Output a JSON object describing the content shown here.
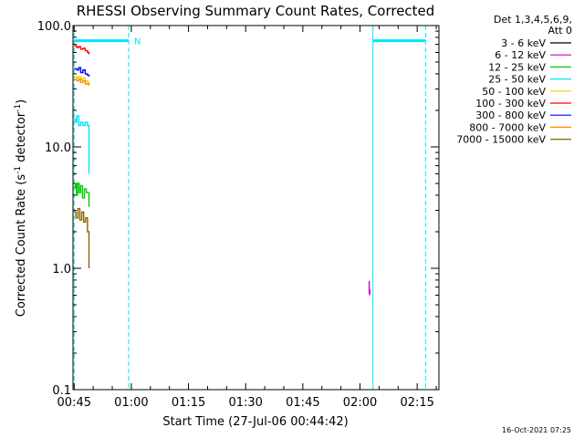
{
  "colors": {
    "background": "#ffffff",
    "axes": "#000000",
    "attenuator_marker": "#00e5ff"
  },
  "chart_data": {
    "type": "line",
    "title": "RHESSI Observing Summary Count Rates, Corrected",
    "xlabel": "Start Time (27-Jul-06 00:44:42)",
    "ylabel_main": "Corrected Count Rate (s",
    "ylabel_sup1": "-1",
    "ylabel_mid": " detector",
    "ylabel_sup2": "-1",
    "ylabel_end": ")",
    "yscale": "log",
    "ylim": [
      0.1,
      100.0
    ],
    "xlim_minutes": [
      0,
      96
    ],
    "x_ticks": [
      {
        "label": "00:45",
        "min": 0.3
      },
      {
        "label": "01:00",
        "min": 15.3
      },
      {
        "label": "01:15",
        "min": 30.3
      },
      {
        "label": "01:30",
        "min": 45.3
      },
      {
        "label": "01:45",
        "min": 60.3
      },
      {
        "label": "02:00",
        "min": 75.3
      },
      {
        "label": "02:15",
        "min": 90.3
      }
    ],
    "y_ticks": [
      {
        "label": "100.0",
        "value": 100
      },
      {
        "label": "10.0",
        "value": 10
      },
      {
        "label": "1.0",
        "value": 1
      },
      {
        "label": "0.1",
        "value": 0.1
      }
    ],
    "legend": {
      "header1": "Det 1,3,4,5,6,9,",
      "header2": "Att 0",
      "entries": [
        {
          "label": "3 - 6 keV",
          "color": "#000000"
        },
        {
          "label": "6 - 12 keV",
          "color": "#cc00cc"
        },
        {
          "label": "12 - 25 keV",
          "color": "#00cc00"
        },
        {
          "label": "25 - 50 keV",
          "color": "#00e5ff"
        },
        {
          "label": "50 - 100 keV",
          "color": "#ffcc00"
        },
        {
          "label": "100 - 300 keV",
          "color": "#ff0000"
        },
        {
          "label": "300 - 800 keV",
          "color": "#0000ff"
        },
        {
          "label": "800 - 7000 keV",
          "color": "#ff8800"
        },
        {
          "label": "7000 - 15000 keV",
          "color": "#886600"
        }
      ]
    },
    "annotations": {
      "night_label": "N",
      "date_stamp": "16-Oct-2021 07:25"
    },
    "markers": {
      "dashed_vlines_min": [
        0.3,
        14.6,
        92.5
      ],
      "solid_vlines_min": [
        78.7
      ],
      "attenuator_segments": [
        {
          "x0": 0.3,
          "x1": 14.6,
          "y": 75
        },
        {
          "x0": 78.7,
          "x1": 92.5,
          "y": 75
        }
      ]
    },
    "series": [
      {
        "name": "100 - 300 keV",
        "color": "#ff0000",
        "points": [
          [
            0.3,
            68
          ],
          [
            1.0,
            66
          ],
          [
            1.5,
            67
          ],
          [
            2.0,
            64
          ],
          [
            2.6,
            65
          ],
          [
            3.2,
            62
          ],
          [
            3.8,
            60
          ],
          [
            4.2,
            58
          ]
        ]
      },
      {
        "name": "300 - 800 keV",
        "color": "#0000ff",
        "points": [
          [
            0.3,
            44
          ],
          [
            1.0,
            43
          ],
          [
            1.5,
            45
          ],
          [
            2.0,
            41
          ],
          [
            2.6,
            43
          ],
          [
            3.2,
            40
          ],
          [
            3.8,
            39
          ],
          [
            4.2,
            38
          ]
        ]
      },
      {
        "name": "50 - 100 keV",
        "color": "#ffcc00",
        "points": [
          [
            0.3,
            38
          ],
          [
            1.0,
            37
          ],
          [
            1.5,
            38
          ],
          [
            2.0,
            36
          ],
          [
            2.6,
            37
          ],
          [
            3.2,
            35
          ],
          [
            3.8,
            34
          ],
          [
            4.2,
            33
          ]
        ]
      },
      {
        "name": "800 - 7000 keV",
        "color": "#ff8800",
        "points": [
          [
            0.3,
            36
          ],
          [
            1.0,
            35
          ],
          [
            1.5,
            36
          ],
          [
            2.0,
            34
          ],
          [
            2.6,
            35
          ],
          [
            3.2,
            33
          ],
          [
            3.8,
            33
          ],
          [
            4.2,
            32
          ]
        ]
      },
      {
        "name": "25 - 50 keV",
        "color": "#00e5ff",
        "points": [
          [
            0.3,
            17
          ],
          [
            0.7,
            16
          ],
          [
            1.0,
            18
          ],
          [
            1.5,
            15
          ],
          [
            2.0,
            16
          ],
          [
            2.6,
            15
          ],
          [
            3.2,
            16
          ],
          [
            3.8,
            15
          ],
          [
            4.2,
            6
          ]
        ]
      },
      {
        "name": "12 - 25 keV",
        "color": "#00cc00",
        "points": [
          [
            0.3,
            4.6
          ],
          [
            0.6,
            5.0
          ],
          [
            0.9,
            4.0
          ],
          [
            1.2,
            5.0
          ],
          [
            1.6,
            4.2
          ],
          [
            2.0,
            4.8
          ],
          [
            2.5,
            3.8
          ],
          [
            3.0,
            4.5
          ],
          [
            3.5,
            4.2
          ],
          [
            4.2,
            3.2
          ]
        ]
      },
      {
        "name": "7000 - 15000 keV",
        "color": "#886600",
        "points": [
          [
            0.3,
            2.9
          ],
          [
            0.8,
            2.6
          ],
          [
            1.3,
            3.1
          ],
          [
            1.8,
            2.5
          ],
          [
            2.3,
            2.9
          ],
          [
            2.8,
            2.4
          ],
          [
            3.3,
            2.6
          ],
          [
            3.8,
            2.0
          ],
          [
            4.2,
            1.0
          ]
        ]
      },
      {
        "name": "6 - 12 keV",
        "color": "#cc00cc",
        "points": [
          [
            77.6,
            0.78
          ],
          [
            77.7,
            0.62
          ],
          [
            77.8,
            0.66
          ],
          [
            77.9,
            0.6
          ]
        ]
      }
    ]
  }
}
